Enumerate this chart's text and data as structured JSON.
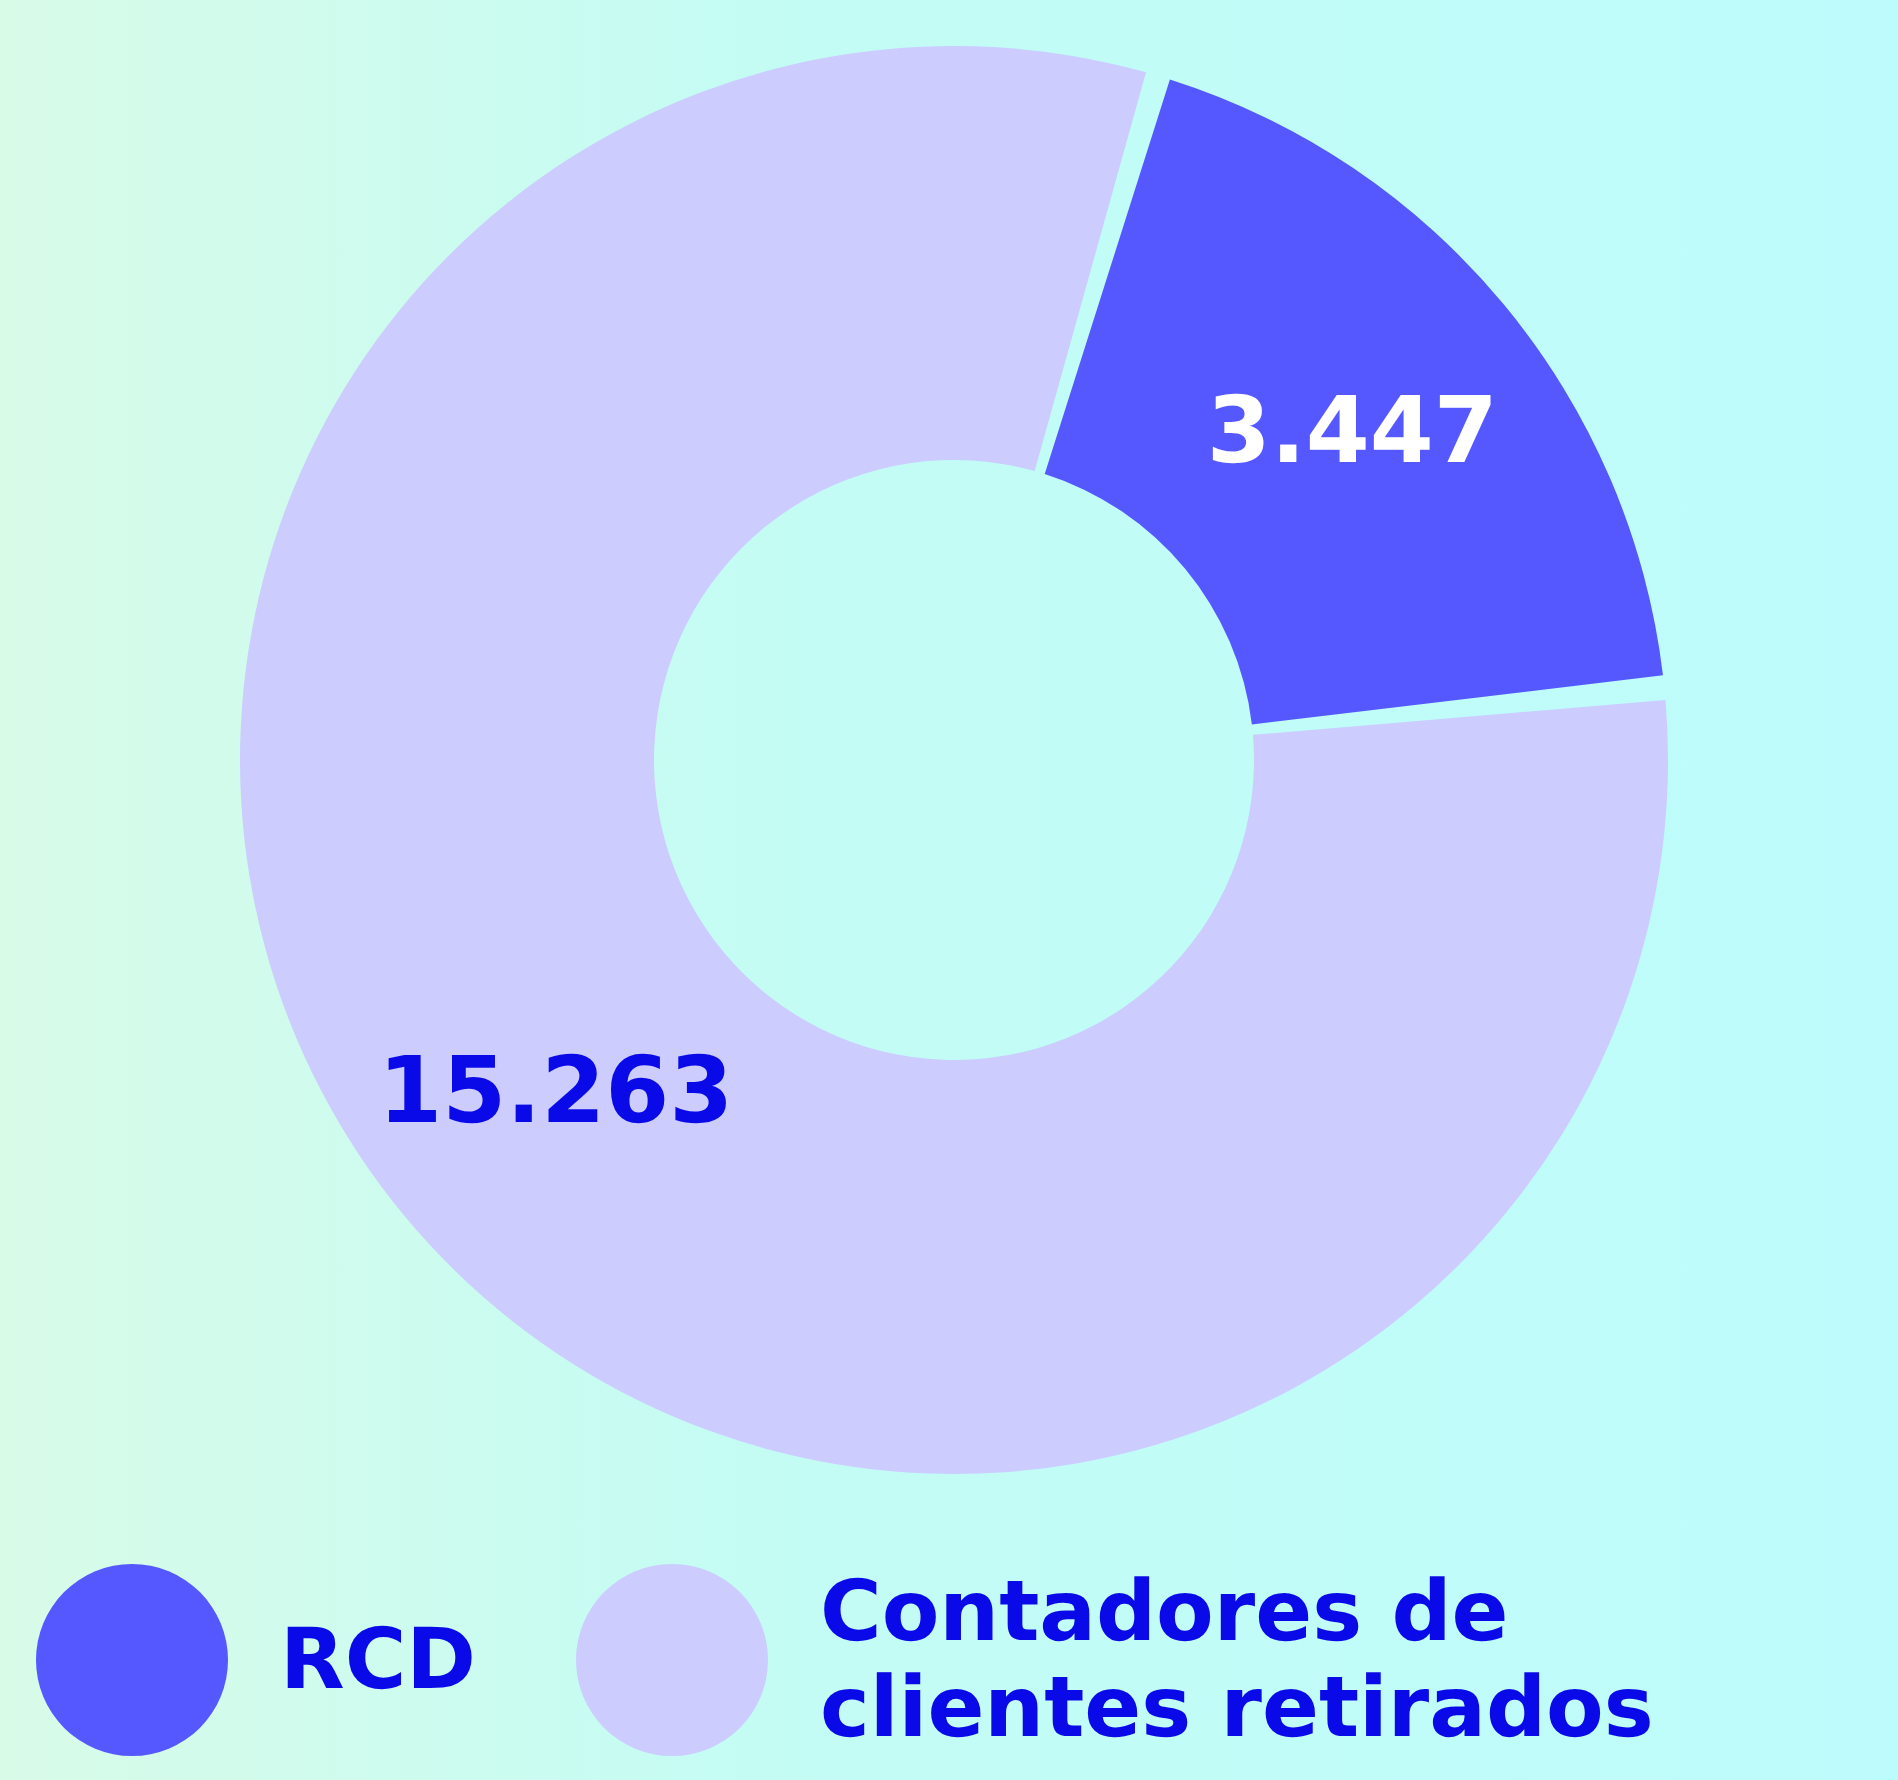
{
  "chart_data": {
    "type": "donut",
    "categories": [
      "RCD",
      "Contadores de clientes retirados"
    ],
    "values": [
      3447,
      15263
    ],
    "value_labels": [
      "3.447",
      "15.263"
    ],
    "colors": [
      "#5558ff",
      "#ccccff"
    ],
    "legend": "bottom"
  }
}
